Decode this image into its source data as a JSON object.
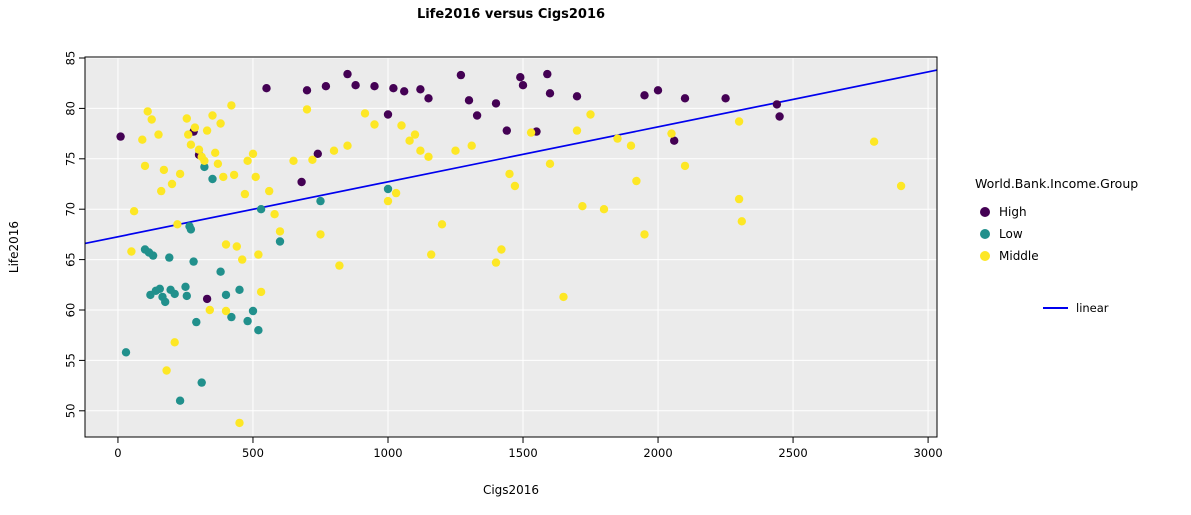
{
  "chart_data": {
    "type": "scatter",
    "title": "Life2016 versus Cigs2016",
    "xlabel": "Cigs2016",
    "ylabel": "Life2016",
    "xlim": [
      -122,
      3033
    ],
    "ylim": [
      47.4,
      85.1
    ],
    "xticks": [
      0,
      500,
      1000,
      1500,
      2000,
      2500,
      3000
    ],
    "yticks": [
      50,
      55,
      60,
      65,
      70,
      75,
      80,
      85
    ],
    "grid": true,
    "panel_bg": "#EBEBEB",
    "grid_color": "#FFFFFF",
    "border_color": "#000000",
    "legend": {
      "title": "World.Bank.Income.Group",
      "position": "right",
      "line_label": "linear"
    },
    "line": {
      "name": "linear",
      "color": "#0000EE",
      "x": [
        -122,
        3033
      ],
      "y": [
        66.6,
        83.8
      ]
    },
    "series": [
      {
        "name": "High",
        "color": "#440154",
        "points": [
          [
            10,
            77.2
          ],
          [
            280,
            77.7
          ],
          [
            300,
            75.4
          ],
          [
            330,
            61.1
          ],
          [
            550,
            82.0
          ],
          [
            680,
            72.7
          ],
          [
            700,
            81.8
          ],
          [
            740,
            75.5
          ],
          [
            770,
            82.2
          ],
          [
            850,
            83.4
          ],
          [
            880,
            82.3
          ],
          [
            950,
            82.2
          ],
          [
            1000,
            79.4
          ],
          [
            1020,
            82.0
          ],
          [
            1060,
            81.7
          ],
          [
            1120,
            81.9
          ],
          [
            1150,
            81.0
          ],
          [
            1270,
            83.3
          ],
          [
            1300,
            80.8
          ],
          [
            1330,
            79.3
          ],
          [
            1400,
            80.5
          ],
          [
            1440,
            77.8
          ],
          [
            1490,
            83.1
          ],
          [
            1500,
            82.3
          ],
          [
            1550,
            77.7
          ],
          [
            1590,
            83.4
          ],
          [
            1600,
            81.5
          ],
          [
            1700,
            81.2
          ],
          [
            1950,
            81.3
          ],
          [
            2000,
            81.8
          ],
          [
            2060,
            76.8
          ],
          [
            2100,
            81.0
          ],
          [
            2250,
            81.0
          ],
          [
            2440,
            80.4
          ],
          [
            2450,
            79.2
          ]
        ]
      },
      {
        "name": "Low",
        "color": "#21908C",
        "points": [
          [
            30,
            55.8
          ],
          [
            100,
            66.0
          ],
          [
            115,
            65.7
          ],
          [
            130,
            65.4
          ],
          [
            120,
            61.5
          ],
          [
            140,
            61.9
          ],
          [
            155,
            62.1
          ],
          [
            165,
            61.3
          ],
          [
            175,
            60.8
          ],
          [
            190,
            65.2
          ],
          [
            195,
            62.0
          ],
          [
            210,
            61.6
          ],
          [
            230,
            51.0
          ],
          [
            250,
            62.3
          ],
          [
            255,
            61.4
          ],
          [
            265,
            68.3
          ],
          [
            270,
            68.0
          ],
          [
            280,
            64.8
          ],
          [
            290,
            58.8
          ],
          [
            310,
            52.8
          ],
          [
            320,
            74.2
          ],
          [
            350,
            73.0
          ],
          [
            380,
            63.8
          ],
          [
            400,
            61.5
          ],
          [
            420,
            59.3
          ],
          [
            450,
            62.0
          ],
          [
            480,
            58.9
          ],
          [
            500,
            59.9
          ],
          [
            520,
            58.0
          ],
          [
            530,
            70.0
          ],
          [
            600,
            66.8
          ],
          [
            750,
            70.8
          ],
          [
            1000,
            72.0
          ]
        ]
      },
      {
        "name": "Middle",
        "color": "#FDE725",
        "points": [
          [
            50,
            65.8
          ],
          [
            60,
            69.8
          ],
          [
            90,
            76.9
          ],
          [
            100,
            74.3
          ],
          [
            110,
            79.7
          ],
          [
            125,
            78.9
          ],
          [
            150,
            77.4
          ],
          [
            160,
            71.8
          ],
          [
            170,
            73.9
          ],
          [
            180,
            54.0
          ],
          [
            200,
            72.5
          ],
          [
            210,
            56.8
          ],
          [
            220,
            68.5
          ],
          [
            230,
            73.5
          ],
          [
            255,
            79.0
          ],
          [
            260,
            77.4
          ],
          [
            270,
            76.4
          ],
          [
            285,
            78.1
          ],
          [
            300,
            75.9
          ],
          [
            310,
            75.2
          ],
          [
            320,
            74.8
          ],
          [
            330,
            77.8
          ],
          [
            340,
            60.0
          ],
          [
            350,
            79.3
          ],
          [
            360,
            75.6
          ],
          [
            370,
            74.5
          ],
          [
            380,
            78.5
          ],
          [
            390,
            73.2
          ],
          [
            400,
            66.5
          ],
          [
            400,
            59.9
          ],
          [
            420,
            80.3
          ],
          [
            430,
            73.4
          ],
          [
            440,
            66.3
          ],
          [
            450,
            48.8
          ],
          [
            460,
            65.0
          ],
          [
            470,
            71.5
          ],
          [
            480,
            74.8
          ],
          [
            500,
            75.5
          ],
          [
            510,
            73.2
          ],
          [
            520,
            65.5
          ],
          [
            530,
            61.8
          ],
          [
            560,
            71.8
          ],
          [
            580,
            69.5
          ],
          [
            600,
            67.8
          ],
          [
            650,
            74.8
          ],
          [
            700,
            79.9
          ],
          [
            720,
            74.9
          ],
          [
            750,
            67.5
          ],
          [
            800,
            75.8
          ],
          [
            820,
            64.4
          ],
          [
            850,
            76.3
          ],
          [
            915,
            79.5
          ],
          [
            950,
            78.4
          ],
          [
            1000,
            70.8
          ],
          [
            1030,
            71.6
          ],
          [
            1050,
            78.3
          ],
          [
            1080,
            76.8
          ],
          [
            1100,
            77.4
          ],
          [
            1120,
            75.8
          ],
          [
            1150,
            75.2
          ],
          [
            1160,
            65.5
          ],
          [
            1200,
            68.5
          ],
          [
            1250,
            75.8
          ],
          [
            1310,
            76.3
          ],
          [
            1400,
            64.7
          ],
          [
            1420,
            66.0
          ],
          [
            1450,
            73.5
          ],
          [
            1470,
            72.3
          ],
          [
            1530,
            77.6
          ],
          [
            1600,
            74.5
          ],
          [
            1650,
            61.3
          ],
          [
            1700,
            77.8
          ],
          [
            1720,
            70.3
          ],
          [
            1750,
            79.4
          ],
          [
            1800,
            70.0
          ],
          [
            1850,
            77.0
          ],
          [
            1900,
            76.3
          ],
          [
            1920,
            72.8
          ],
          [
            1950,
            67.5
          ],
          [
            2050,
            77.5
          ],
          [
            2100,
            74.3
          ],
          [
            2300,
            78.7
          ],
          [
            2300,
            71.0
          ],
          [
            2310,
            68.8
          ],
          [
            2800,
            76.7
          ],
          [
            2900,
            72.3
          ]
        ]
      }
    ]
  }
}
